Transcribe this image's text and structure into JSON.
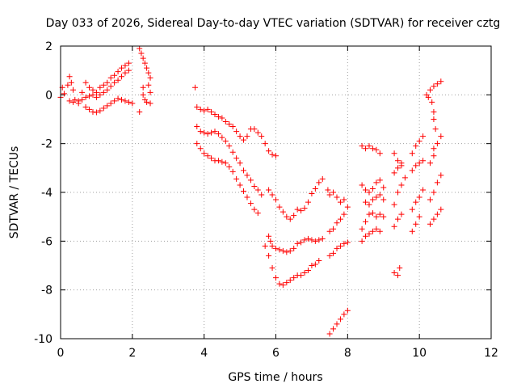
{
  "chart_data": {
    "type": "scatter",
    "title": "Day 033 of 2026, Sidereal Day-to-day VTEC variation (SDTVAR) for receiver cztg",
    "xlabel": "GPS time / hours",
    "ylabel": "SDTVAR / TECUs",
    "xlim": [
      0,
      12
    ],
    "ylim": [
      -10,
      2
    ],
    "xticks": [
      "0",
      "2",
      "4",
      "6",
      "8",
      "10",
      "12"
    ],
    "yticks": [
      "2",
      "0",
      "-2",
      "-4",
      "-6",
      "-8",
      "-10"
    ],
    "grid": true,
    "marker": "plus",
    "color": "#ff0000",
    "series": [
      {
        "points": [
          [
            0,
            -0.1
          ],
          [
            0.05,
            0.3
          ],
          [
            0.1,
            0.05
          ],
          [
            0.2,
            0.4
          ],
          [
            0.25,
            0.75
          ],
          [
            0.3,
            0.5
          ],
          [
            0.35,
            0.2
          ],
          [
            0.4,
            -0.2
          ],
          [
            0.5,
            -0.35
          ],
          [
            0.6,
            0.1
          ],
          [
            0.7,
            0.5
          ],
          [
            0.8,
            0.3
          ],
          [
            0.9,
            0.2
          ],
          [
            1.0,
            0.1
          ],
          [
            1.1,
            0.3
          ],
          [
            1.2,
            0.4
          ],
          [
            1.3,
            0.5
          ],
          [
            1.4,
            0.7
          ],
          [
            1.5,
            0.8
          ],
          [
            1.6,
            0.95
          ],
          [
            1.7,
            1.1
          ],
          [
            1.8,
            1.2
          ],
          [
            1.9,
            1.3
          ]
        ]
      },
      {
        "points": [
          [
            0.25,
            -0.25
          ],
          [
            0.35,
            -0.3
          ],
          [
            0.5,
            -0.25
          ],
          [
            0.6,
            -0.2
          ],
          [
            0.7,
            -0.1
          ],
          [
            0.8,
            -0.05
          ],
          [
            0.9,
            0.0
          ],
          [
            1.0,
            -0.1
          ],
          [
            1.1,
            0.0
          ],
          [
            1.2,
            0.1
          ],
          [
            1.3,
            0.2
          ],
          [
            1.4,
            0.35
          ],
          [
            1.5,
            0.5
          ],
          [
            1.6,
            0.6
          ],
          [
            1.7,
            0.75
          ],
          [
            1.8,
            0.9
          ],
          [
            1.9,
            1.0
          ]
        ]
      },
      {
        "points": [
          [
            0.7,
            -0.5
          ],
          [
            0.8,
            -0.6
          ],
          [
            0.9,
            -0.7
          ],
          [
            1.0,
            -0.72
          ],
          [
            1.1,
            -0.65
          ],
          [
            1.2,
            -0.55
          ],
          [
            1.3,
            -0.45
          ],
          [
            1.4,
            -0.35
          ],
          [
            1.5,
            -0.25
          ],
          [
            1.6,
            -0.15
          ],
          [
            1.7,
            -0.2
          ],
          [
            1.8,
            -0.25
          ],
          [
            1.9,
            -0.3
          ],
          [
            2.0,
            -0.35
          ]
        ]
      },
      {
        "points": [
          [
            2.2,
            1.9
          ],
          [
            2.25,
            1.7
          ],
          [
            2.3,
            1.5
          ],
          [
            2.35,
            1.3
          ],
          [
            2.4,
            1.1
          ],
          [
            2.45,
            0.9
          ],
          [
            2.5,
            0.7
          ],
          [
            2.3,
            0.0
          ],
          [
            2.35,
            -0.2
          ],
          [
            2.4,
            -0.3
          ],
          [
            2.5,
            -0.35
          ],
          [
            2.2,
            -0.7
          ],
          [
            2.3,
            0.3
          ],
          [
            2.5,
            0.1
          ],
          [
            2.45,
            0.4
          ]
        ]
      },
      {
        "points": [
          [
            3.75,
            0.3
          ],
          [
            3.8,
            -0.5
          ],
          [
            3.9,
            -0.6
          ],
          [
            4.0,
            -0.65
          ],
          [
            4.1,
            -0.6
          ],
          [
            4.2,
            -0.7
          ],
          [
            4.3,
            -0.8
          ],
          [
            4.4,
            -0.9
          ],
          [
            4.5,
            -0.95
          ],
          [
            4.6,
            -1.1
          ],
          [
            4.7,
            -1.2
          ],
          [
            4.8,
            -1.3
          ],
          [
            4.9,
            -1.5
          ],
          [
            5.0,
            -1.7
          ],
          [
            5.1,
            -1.85
          ],
          [
            5.2,
            -1.7
          ],
          [
            5.3,
            -1.4
          ],
          [
            5.4,
            -1.4
          ],
          [
            5.5,
            -1.55
          ],
          [
            5.6,
            -1.7
          ],
          [
            5.7,
            -2.0
          ],
          [
            5.8,
            -2.3
          ],
          [
            5.9,
            -2.45
          ],
          [
            6.0,
            -2.5
          ]
        ]
      },
      {
        "points": [
          [
            3.8,
            -1.3
          ],
          [
            3.9,
            -1.5
          ],
          [
            4.0,
            -1.55
          ],
          [
            4.1,
            -1.6
          ],
          [
            4.2,
            -1.55
          ],
          [
            4.3,
            -1.5
          ],
          [
            4.4,
            -1.6
          ],
          [
            4.5,
            -1.75
          ],
          [
            4.6,
            -1.9
          ],
          [
            4.7,
            -2.1
          ],
          [
            4.8,
            -2.35
          ],
          [
            4.9,
            -2.6
          ],
          [
            5.0,
            -2.8
          ],
          [
            5.1,
            -3.1
          ],
          [
            5.2,
            -3.3
          ],
          [
            5.3,
            -3.5
          ],
          [
            5.4,
            -3.75
          ],
          [
            5.5,
            -3.9
          ],
          [
            5.6,
            -4.1
          ]
        ]
      },
      {
        "points": [
          [
            3.8,
            -2.0
          ],
          [
            3.9,
            -2.2
          ],
          [
            4.0,
            -2.4
          ],
          [
            4.1,
            -2.5
          ],
          [
            4.2,
            -2.6
          ],
          [
            4.3,
            -2.7
          ],
          [
            4.4,
            -2.7
          ],
          [
            4.5,
            -2.75
          ],
          [
            4.6,
            -2.8
          ],
          [
            4.7,
            -2.95
          ],
          [
            4.8,
            -3.15
          ],
          [
            4.9,
            -3.45
          ],
          [
            5.0,
            -3.7
          ],
          [
            5.1,
            -3.95
          ],
          [
            5.2,
            -4.2
          ],
          [
            5.3,
            -4.45
          ],
          [
            5.4,
            -4.7
          ],
          [
            5.5,
            -4.85
          ]
        ]
      },
      {
        "points": [
          [
            5.8,
            -3.9
          ],
          [
            5.9,
            -4.1
          ],
          [
            6.0,
            -4.3
          ],
          [
            6.1,
            -4.6
          ],
          [
            6.2,
            -4.8
          ],
          [
            6.3,
            -5.0
          ],
          [
            6.4,
            -5.1
          ],
          [
            6.5,
            -4.95
          ],
          [
            6.6,
            -4.7
          ],
          [
            6.7,
            -4.75
          ],
          [
            6.8,
            -4.65
          ],
          [
            6.9,
            -4.4
          ],
          [
            7.0,
            -4.05
          ],
          [
            7.1,
            -3.85
          ],
          [
            7.2,
            -3.6
          ],
          [
            7.3,
            -3.45
          ]
        ]
      },
      {
        "points": [
          [
            5.8,
            -5.8
          ],
          [
            5.85,
            -6.0
          ],
          [
            5.9,
            -6.2
          ],
          [
            6.0,
            -6.3
          ],
          [
            6.1,
            -6.35
          ],
          [
            6.2,
            -6.4
          ],
          [
            6.3,
            -6.45
          ],
          [
            6.4,
            -6.4
          ],
          [
            6.5,
            -6.3
          ],
          [
            6.6,
            -6.1
          ],
          [
            6.7,
            -6.05
          ],
          [
            6.8,
            -5.95
          ],
          [
            6.9,
            -5.9
          ],
          [
            7.0,
            -5.95
          ],
          [
            7.1,
            -6.0
          ],
          [
            7.2,
            -5.95
          ],
          [
            7.3,
            -5.9
          ]
        ]
      },
      {
        "points": [
          [
            5.7,
            -6.2
          ],
          [
            5.8,
            -6.6
          ],
          [
            5.9,
            -7.1
          ],
          [
            6.0,
            -7.5
          ],
          [
            6.1,
            -7.75
          ],
          [
            6.2,
            -7.8
          ],
          [
            6.3,
            -7.7
          ],
          [
            6.4,
            -7.6
          ],
          [
            6.5,
            -7.5
          ],
          [
            6.6,
            -7.4
          ],
          [
            6.7,
            -7.4
          ],
          [
            6.8,
            -7.3
          ],
          [
            6.9,
            -7.2
          ],
          [
            7.0,
            -7.0
          ],
          [
            7.1,
            -6.95
          ],
          [
            7.2,
            -6.8
          ]
        ]
      },
      {
        "points": [
          [
            7.45,
            -3.9
          ],
          [
            7.5,
            -4.1
          ],
          [
            7.6,
            -4.0
          ],
          [
            7.7,
            -4.2
          ],
          [
            7.8,
            -4.4
          ],
          [
            7.9,
            -4.3
          ],
          [
            7.5,
            -5.6
          ],
          [
            7.6,
            -5.5
          ],
          [
            7.7,
            -5.25
          ],
          [
            7.8,
            -5.1
          ],
          [
            7.9,
            -4.9
          ],
          [
            8.0,
            -4.6
          ]
        ]
      },
      {
        "points": [
          [
            7.5,
            -6.6
          ],
          [
            7.6,
            -6.5
          ],
          [
            7.7,
            -6.3
          ],
          [
            7.8,
            -6.2
          ],
          [
            7.9,
            -6.1
          ],
          [
            8.0,
            -6.05
          ]
        ]
      },
      {
        "points": [
          [
            7.5,
            -9.8
          ],
          [
            7.6,
            -9.6
          ],
          [
            7.7,
            -9.4
          ],
          [
            7.8,
            -9.2
          ],
          [
            7.9,
            -9.0
          ],
          [
            8.0,
            -8.85
          ]
        ]
      },
      {
        "points": [
          [
            8.4,
            -2.1
          ],
          [
            8.5,
            -2.2
          ],
          [
            8.6,
            -2.1
          ],
          [
            8.7,
            -2.2
          ],
          [
            8.8,
            -2.25
          ],
          [
            8.9,
            -2.4
          ],
          [
            8.4,
            -3.7
          ],
          [
            8.5,
            -3.9
          ],
          [
            8.6,
            -4.0
          ],
          [
            8.7,
            -3.85
          ],
          [
            8.8,
            -3.6
          ],
          [
            8.9,
            -3.5
          ],
          [
            9.0,
            -3.8
          ],
          [
            8.5,
            -4.4
          ],
          [
            8.6,
            -4.5
          ],
          [
            8.7,
            -4.3
          ],
          [
            8.8,
            -4.2
          ],
          [
            8.9,
            -4.1
          ],
          [
            9.0,
            -4.3
          ]
        ]
      },
      {
        "points": [
          [
            8.4,
            -5.5
          ],
          [
            8.5,
            -5.2
          ],
          [
            8.6,
            -4.9
          ],
          [
            8.7,
            -4.85
          ],
          [
            8.8,
            -5.0
          ],
          [
            8.9,
            -4.9
          ],
          [
            9.0,
            -5.0
          ],
          [
            8.4,
            -6.0
          ],
          [
            8.5,
            -5.8
          ],
          [
            8.6,
            -5.7
          ],
          [
            8.7,
            -5.6
          ],
          [
            8.8,
            -5.5
          ],
          [
            8.9,
            -5.6
          ]
        ]
      },
      {
        "points": [
          [
            9.3,
            -2.4
          ],
          [
            9.4,
            -2.7
          ],
          [
            9.5,
            -2.8
          ],
          [
            9.3,
            -3.2
          ],
          [
            9.4,
            -3.0
          ],
          [
            9.5,
            -2.9
          ],
          [
            9.3,
            -4.5
          ],
          [
            9.4,
            -4.0
          ],
          [
            9.5,
            -3.7
          ],
          [
            9.6,
            -3.4
          ],
          [
            9.3,
            -5.4
          ],
          [
            9.4,
            -5.1
          ],
          [
            9.5,
            -4.9
          ],
          [
            9.3,
            -7.3
          ],
          [
            9.4,
            -7.4
          ],
          [
            9.45,
            -7.1
          ]
        ]
      },
      {
        "points": [
          [
            9.8,
            -2.4
          ],
          [
            9.9,
            -2.1
          ],
          [
            10.0,
            -1.9
          ],
          [
            10.1,
            -1.7
          ],
          [
            9.8,
            -3.1
          ],
          [
            9.9,
            -2.9
          ],
          [
            10.0,
            -2.8
          ],
          [
            10.1,
            -2.7
          ],
          [
            9.8,
            -4.7
          ],
          [
            9.9,
            -4.4
          ],
          [
            10.0,
            -4.2
          ],
          [
            10.1,
            -3.9
          ],
          [
            9.8,
            -5.6
          ],
          [
            9.9,
            -5.3
          ],
          [
            10.0,
            -5.0
          ]
        ]
      },
      {
        "points": [
          [
            10.2,
            0.0
          ],
          [
            10.3,
            0.2
          ],
          [
            10.4,
            0.35
          ],
          [
            10.5,
            0.45
          ],
          [
            10.6,
            0.55
          ],
          [
            10.25,
            -0.1
          ],
          [
            10.35,
            -0.3
          ],
          [
            10.4,
            -0.7
          ],
          [
            10.4,
            -1.0
          ],
          [
            10.45,
            -1.4
          ],
          [
            10.4,
            -2.2
          ],
          [
            10.5,
            -2.0
          ],
          [
            10.6,
            -1.7
          ],
          [
            10.3,
            -2.8
          ],
          [
            10.4,
            -2.5
          ],
          [
            10.3,
            -4.3
          ],
          [
            10.4,
            -4.0
          ],
          [
            10.5,
            -3.6
          ],
          [
            10.6,
            -3.3
          ],
          [
            10.3,
            -5.3
          ],
          [
            10.4,
            -5.1
          ],
          [
            10.5,
            -4.9
          ],
          [
            10.6,
            -4.7
          ]
        ]
      }
    ]
  }
}
